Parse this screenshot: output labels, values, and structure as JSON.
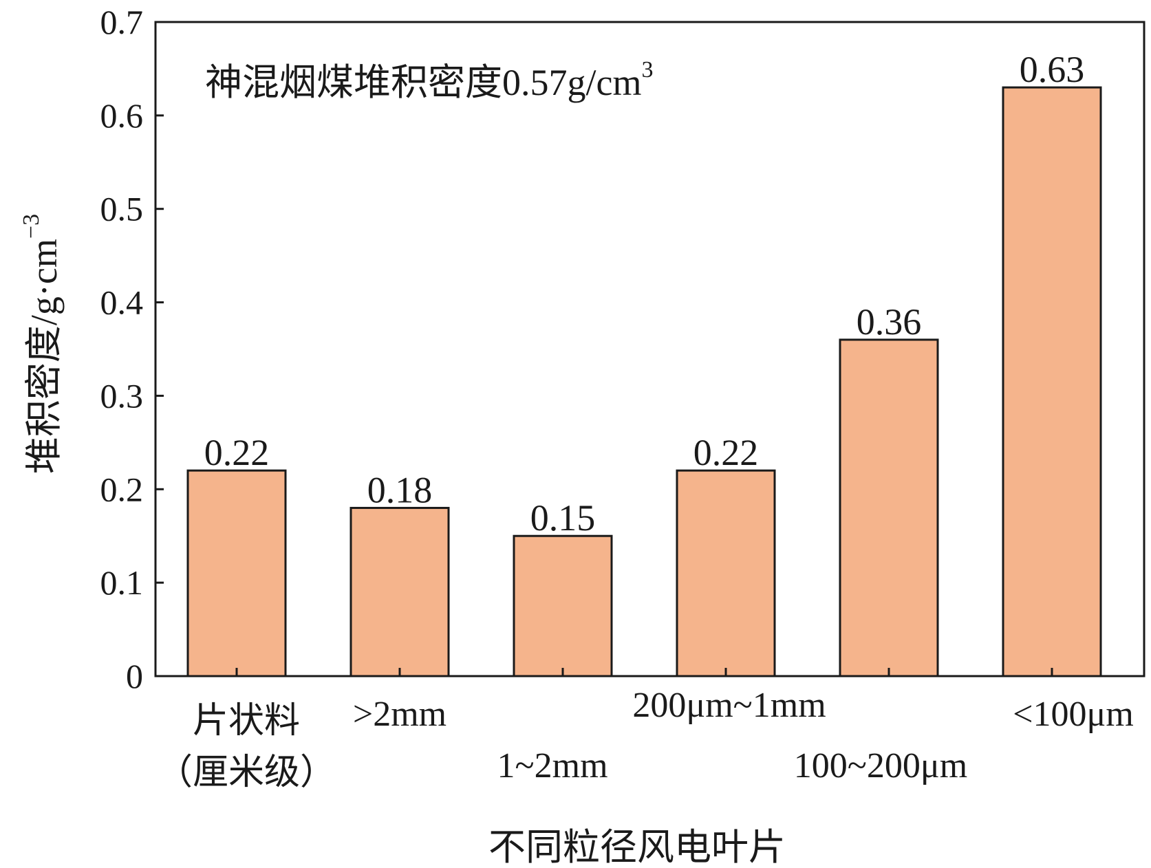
{
  "chart_data": {
    "type": "bar",
    "categories": [
      [
        "片状料",
        "（厘米级）"
      ],
      [
        ">2mm"
      ],
      [
        "1~2mm"
      ],
      [
        "200μm~1mm"
      ],
      [
        "100~200μm"
      ],
      [
        "<100μm"
      ]
    ],
    "values": [
      0.22,
      0.18,
      0.15,
      0.22,
      0.36,
      0.63
    ],
    "data_labels": [
      "0.22",
      "0.18",
      "0.15",
      "0.22",
      "0.36",
      "0.63"
    ],
    "xlabel": "不同粒径风电叶片",
    "ylabel": "堆积密度/g·cm",
    "ylabel_superscript": "−3",
    "ylim": [
      0,
      0.7
    ],
    "yticks": [
      "0",
      "0.1",
      "0.2",
      "0.3",
      "0.4",
      "0.5",
      "0.6",
      "0.7"
    ],
    "annotation": "神混烟煤堆积密度0.57g/cm",
    "annotation_superscript": "3",
    "grid": false,
    "bar_color": "#f5b48c"
  }
}
